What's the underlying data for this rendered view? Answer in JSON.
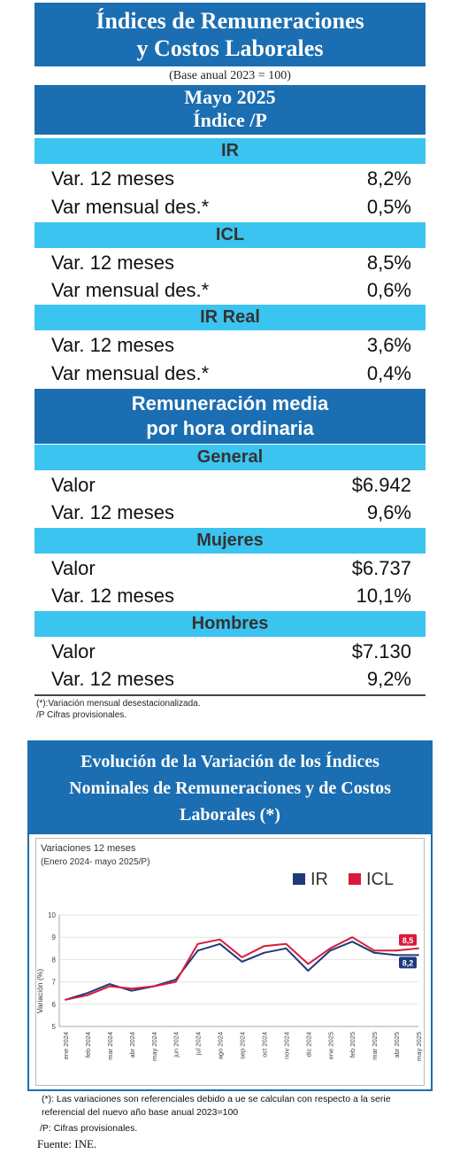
{
  "header": {
    "title_line1": "Índices de Remuneraciones",
    "title_line2": "y Costos Laborales",
    "base": "(Base anual 2023 = 100)",
    "period": "Mayo 2025",
    "index_label": "Índice /P"
  },
  "ir": {
    "title": "IR",
    "rows": [
      {
        "label": "Var. 12 meses",
        "value": "8,2%"
      },
      {
        "label": "Var mensual des.*",
        "value": "0,5%"
      }
    ]
  },
  "icl": {
    "title": "ICL",
    "rows": [
      {
        "label": "Var. 12 meses",
        "value": "8,5%"
      },
      {
        "label": "Var mensual des.*",
        "value": "0,6%"
      }
    ]
  },
  "ir_real": {
    "title": "IR Real",
    "rows": [
      {
        "label": "Var. 12 meses",
        "value": "3,6%"
      },
      {
        "label": "Var mensual des.*",
        "value": "0,4%"
      }
    ]
  },
  "remuneracion": {
    "title_line1": "Remuneración media",
    "title_line2": "por hora ordinaria",
    "general": {
      "title": "General",
      "rows": [
        {
          "label": "Valor",
          "value": "$6.942"
        },
        {
          "label": "Var. 12 meses",
          "value": "9,6%"
        }
      ]
    },
    "mujeres": {
      "title": "Mujeres",
      "rows": [
        {
          "label": "Valor",
          "value": "$6.737"
        },
        {
          "label": "Var. 12 meses",
          "value": "10,1%"
        }
      ]
    },
    "hombres": {
      "title": "Hombres",
      "rows": [
        {
          "label": "Valor",
          "value": "$7.130"
        },
        {
          "label": "Var. 12 meses",
          "value": "9,2%"
        }
      ]
    }
  },
  "notes": {
    "note1": "(*):Variación mensual desestacionalizada.",
    "note2": "/P Cifras provisionales."
  },
  "chart_title": {
    "line1": "Evolución de la Variación de los Índices",
    "line2": "Nominales de Remuneraciones y de Costos",
    "line3": "Laborales (*)"
  },
  "chart_data": {
    "type": "line",
    "subtitle": "Variaciones 12 meses",
    "subtitle2": "(Enero 2024- mayo 2025/P)",
    "ylabel": "Variación (%)",
    "xlabel": "",
    "ylim": [
      5,
      10
    ],
    "yticks": [
      5,
      6,
      7,
      8,
      9,
      10
    ],
    "grid": true,
    "legend_position": "top-right",
    "categories": [
      "ene 2024",
      "feb 2024",
      "mar 2024",
      "abr 2024",
      "may 2024",
      "jun 2024",
      "jul 2024",
      "ago 2024",
      "sep 2024",
      "oct 2024",
      "nov 2024",
      "dic 2024",
      "ene 2025",
      "feb 2025",
      "mar 2025",
      "abr 2025",
      "may 2025"
    ],
    "series": [
      {
        "name": "IR",
        "color": "#1f3a7a",
        "values": [
          6.2,
          6.5,
          6.9,
          6.6,
          6.8,
          7.1,
          8.4,
          8.7,
          7.9,
          8.3,
          8.5,
          7.5,
          8.4,
          8.8,
          8.3,
          8.2,
          8.2
        ],
        "end_label": "8,2"
      },
      {
        "name": "ICL",
        "color": "#d81b3c",
        "values": [
          6.2,
          6.4,
          6.8,
          6.7,
          6.8,
          7.0,
          8.7,
          8.9,
          8.1,
          8.6,
          8.7,
          7.8,
          8.5,
          9.0,
          8.4,
          8.4,
          8.5
        ],
        "end_label": "8,5"
      }
    ]
  },
  "footnotes": {
    "line1": "(*): Las variaciones son referenciales debido a ue se calculan con respecto a la serie",
    "line2": "referencial del nuevo año base anual 2023=100",
    "line3": "/P: Cifras provisionales.",
    "source": "Fuente: INE."
  }
}
